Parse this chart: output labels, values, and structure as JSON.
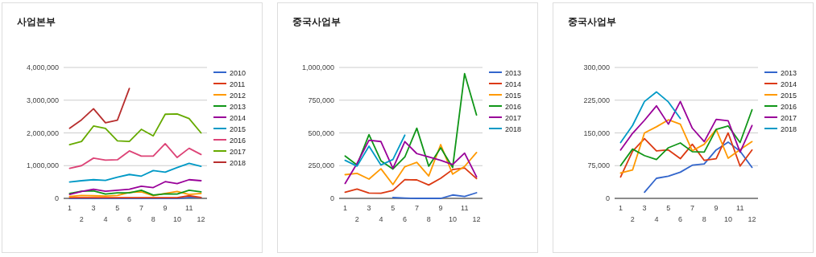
{
  "chart_data": [
    {
      "type": "line",
      "title": "사업본부",
      "categories": [
        "1",
        "2",
        "3",
        "4",
        "5",
        "6",
        "7",
        "8",
        "9",
        "10",
        "11",
        "12"
      ],
      "ylim": [
        0,
        4000000
      ],
      "yticks": [
        {
          "value": 0,
          "label": "0"
        },
        {
          "value": 1000000,
          "label": "1,000,000"
        },
        {
          "value": 2000000,
          "label": "2,000,000"
        },
        {
          "value": 3000000,
          "label": "3,000,000"
        },
        {
          "value": 4000000,
          "label": "4,000,000"
        }
      ],
      "grid": "y",
      "legend": "right",
      "series": [
        {
          "name": "2010",
          "color": "#3366cc",
          "values": [
            0,
            0,
            0,
            0,
            0,
            0,
            0,
            0,
            0,
            0,
            30000,
            30000
          ]
        },
        {
          "name": "2011",
          "color": "#dc3912",
          "values": [
            20000,
            20000,
            20000,
            20000,
            20000,
            20000,
            20000,
            20000,
            20000,
            20000,
            80000,
            30000
          ]
        },
        {
          "name": "2012",
          "color": "#ff9900",
          "values": [
            60000,
            90000,
            80000,
            70000,
            90000,
            180000,
            200000,
            80000,
            150000,
            210000,
            120000,
            150000
          ]
        },
        {
          "name": "2013",
          "color": "#109618",
          "values": [
            150000,
            220000,
            230000,
            130000,
            170000,
            170000,
            250000,
            100000,
            140000,
            130000,
            250000,
            200000
          ]
        },
        {
          "name": "2014",
          "color": "#990099",
          "values": [
            120000,
            210000,
            280000,
            220000,
            250000,
            280000,
            370000,
            330000,
            510000,
            450000,
            570000,
            540000
          ]
        },
        {
          "name": "2015",
          "color": "#0099c6",
          "values": [
            500000,
            540000,
            570000,
            550000,
            650000,
            730000,
            680000,
            850000,
            800000,
            940000,
            1070000,
            980000
          ]
        },
        {
          "name": "2016",
          "color": "#dd4477",
          "values": [
            920000,
            1000000,
            1230000,
            1170000,
            1180000,
            1450000,
            1290000,
            1290000,
            1670000,
            1250000,
            1530000,
            1340000
          ]
        },
        {
          "name": "2017",
          "color": "#66aa00",
          "values": [
            1640000,
            1740000,
            2210000,
            2140000,
            1760000,
            1740000,
            2110000,
            1910000,
            2570000,
            2580000,
            2440000,
            2000000
          ]
        },
        {
          "name": "2018",
          "color": "#b82e2e",
          "values": [
            2140000,
            2400000,
            2740000,
            2310000,
            2390000,
            3360000,
            null,
            null,
            null,
            null,
            null,
            null
          ]
        }
      ]
    },
    {
      "type": "line",
      "title": "중국사업부",
      "categories": [
        "1",
        "2",
        "3",
        "4",
        "5",
        "6",
        "7",
        "8",
        "9",
        "10",
        "11",
        "12"
      ],
      "ylim": [
        0,
        1000000
      ],
      "yticks": [
        {
          "value": 0,
          "label": "0"
        },
        {
          "value": 250000,
          "label": "250,000"
        },
        {
          "value": 500000,
          "label": "500,000"
        },
        {
          "value": 750000,
          "label": "750,000"
        },
        {
          "value": 1000000,
          "label": "1,000,000"
        }
      ],
      "grid": "y",
      "legend": "right",
      "series": [
        {
          "name": "2013",
          "color": "#3366cc",
          "values": [
            null,
            null,
            null,
            null,
            6000,
            2000,
            0,
            0,
            0,
            26000,
            14000,
            43000
          ]
        },
        {
          "name": "2014",
          "color": "#dc3912",
          "values": [
            47000,
            71000,
            41000,
            39000,
            61000,
            143000,
            141000,
            102000,
            153000,
            220000,
            232000,
            151000
          ]
        },
        {
          "name": "2015",
          "color": "#ff9900",
          "values": [
            181000,
            191000,
            147000,
            226000,
            106000,
            242000,
            275000,
            171000,
            411000,
            185000,
            244000,
            350000
          ]
        },
        {
          "name": "2016",
          "color": "#109618",
          "values": [
            324000,
            255000,
            487000,
            287000,
            224000,
            316000,
            536000,
            246000,
            387000,
            236000,
            953000,
            637000
          ]
        },
        {
          "name": "2017",
          "color": "#990099",
          "values": [
            114000,
            267000,
            444000,
            434000,
            230000,
            434000,
            342000,
            316000,
            291000,
            259000,
            346000,
            165000
          ]
        },
        {
          "name": "2018",
          "color": "#0099c6",
          "values": [
            291000,
            246000,
            399000,
            255000,
            297000,
            483000,
            null,
            null,
            null,
            null,
            null,
            null
          ]
        }
      ]
    },
    {
      "type": "line",
      "title": "중국사업부",
      "categories": [
        "1",
        "2",
        "3",
        "4",
        "5",
        "6",
        "7",
        "8",
        "9",
        "10",
        "11",
        "12"
      ],
      "ylim": [
        0,
        300000
      ],
      "yticks": [
        {
          "value": 0,
          "label": "0"
        },
        {
          "value": 75000,
          "label": "75,000"
        },
        {
          "value": 150000,
          "label": "150,000"
        },
        {
          "value": 225000,
          "label": "225,000"
        },
        {
          "value": 300000,
          "label": "300,000"
        }
      ],
      "grid": "y",
      "legend": "right",
      "series": [
        {
          "name": "2013",
          "color": "#3366cc",
          "values": [
            null,
            null,
            14000,
            46000,
            51000,
            60000,
            76000,
            79000,
            111000,
            129000,
            108000,
            71000
          ]
        },
        {
          "name": "2014",
          "color": "#dc3912",
          "values": [
            49000,
            108000,
            137000,
            109000,
            111000,
            91000,
            124000,
            87000,
            91000,
            150000,
            74000,
            111000
          ]
        },
        {
          "name": "2015",
          "color": "#ff9900",
          "values": [
            58000,
            65000,
            150000,
            164000,
            180000,
            170000,
            109000,
            124000,
            158000,
            92000,
            112000,
            130000
          ]
        },
        {
          "name": "2016",
          "color": "#109618",
          "values": [
            75000,
            113000,
            98000,
            89000,
            116000,
            127000,
            107000,
            106000,
            158000,
            166000,
            128000,
            203000
          ]
        },
        {
          "name": "2017",
          "color": "#990099",
          "values": [
            111000,
            149000,
            179000,
            212000,
            170000,
            222000,
            161000,
            130000,
            181000,
            178000,
            106000,
            167000
          ]
        },
        {
          "name": "2018",
          "color": "#0099c6",
          "values": [
            128000,
            167000,
            222000,
            244000,
            221000,
            183000,
            null,
            null,
            null,
            null,
            null,
            null
          ]
        }
      ]
    }
  ]
}
